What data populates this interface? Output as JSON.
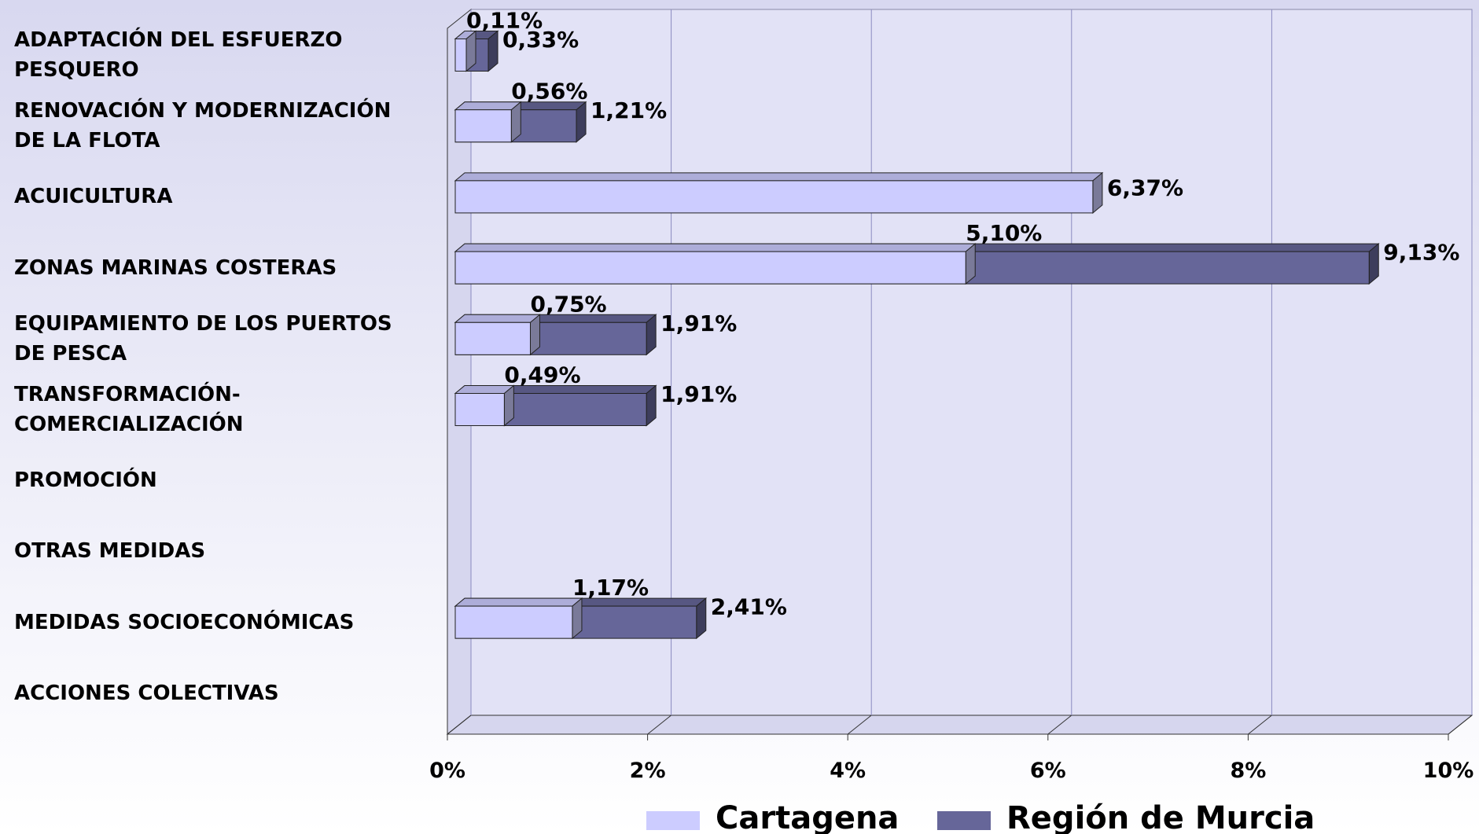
{
  "chart_data": {
    "type": "bar",
    "categories": [
      "ADAPTACIÓN DEL ESFUERZO\nPESQUERO",
      "RENOVACIÓN Y MODERNIZACIÓN\nDE LA FLOTA",
      "ACUICULTURA",
      "ZONAS MARINAS COSTERAS",
      "EQUIPAMIENTO DE LOS PUERTOS\nDE PESCA",
      "TRANSFORMACIÓN-\nCOMERCIALIZACIÓN",
      "PROMOCIÓN",
      "OTRAS MEDIDAS",
      "MEDIDAS SOCIOECONÓMICAS",
      "ACCIONES COLECTIVAS"
    ],
    "series": [
      {
        "name": "Cartagena",
        "color": "#ccccff",
        "values": [
          0.11,
          0.56,
          6.37,
          5.1,
          0.75,
          0.49,
          null,
          null,
          1.17,
          null
        ],
        "value_labels": [
          "0,11%",
          "0,56%",
          "6,37%",
          "5,10%",
          "0,75%",
          "0,49%",
          null,
          null,
          "1,17%",
          null
        ]
      },
      {
        "name": "Región de Murcia",
        "color": "#666699",
        "values": [
          0.33,
          1.21,
          null,
          9.13,
          1.91,
          1.91,
          null,
          null,
          2.41,
          null
        ],
        "value_labels": [
          "0,33%",
          "1,21%",
          null,
          "9,13%",
          "1,91%",
          "1,91%",
          null,
          null,
          "2,41%",
          null
        ]
      }
    ],
    "xlim": [
      0,
      10
    ],
    "xticks": [
      {
        "value": 0,
        "label": "0%"
      },
      {
        "value": 2,
        "label": "2%"
      },
      {
        "value": 4,
        "label": "4%"
      },
      {
        "value": 6,
        "label": "6%"
      },
      {
        "value": 8,
        "label": "8%"
      },
      {
        "value": 10,
        "label": "10%"
      }
    ],
    "grid": true,
    "legend": "bottom"
  }
}
